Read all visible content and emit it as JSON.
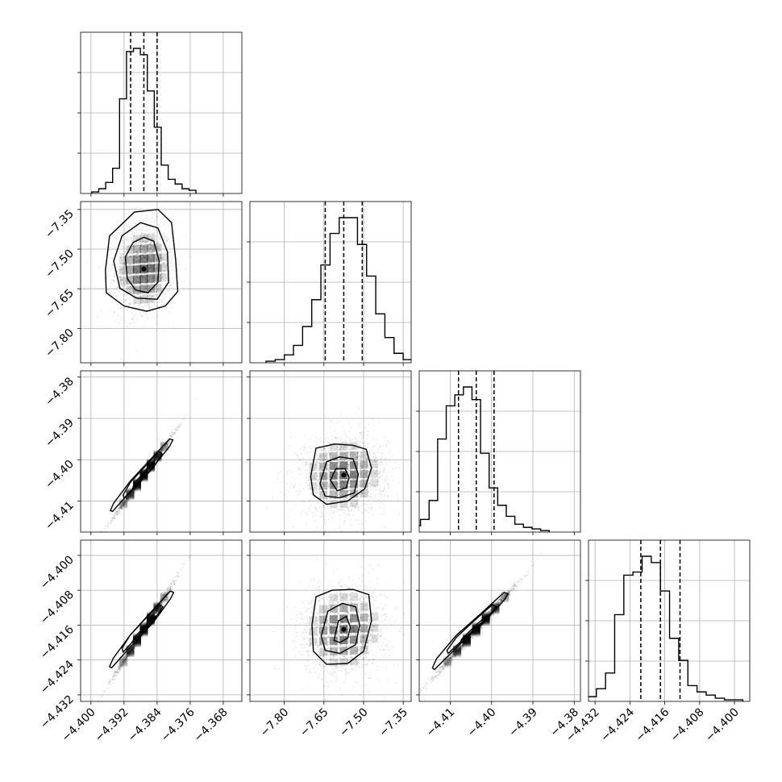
{
  "chart_data": {
    "type": "corner",
    "grid": true,
    "parameters": [
      {
        "lim": [
          -4.4025,
          -4.3635
        ],
        "ticks": [
          "−4.400",
          "−4.392",
          "−4.384",
          "−4.376",
          "−4.368"
        ],
        "tick_values": [
          -4.4,
          -4.392,
          -4.384,
          -4.376,
          -4.368
        ],
        "quantiles": [
          -4.3904,
          -4.3872,
          -4.384
        ],
        "mean": -4.3872,
        "sd": 0.003,
        "hist": [
          1,
          3,
          7,
          16,
          60,
          90,
          92,
          88,
          65,
          42,
          18,
          9,
          6,
          3,
          2
        ]
      },
      {
        "lim": [
          -7.93,
          -7.32
        ],
        "ticks": [
          "−7.80",
          "−7.65",
          "−7.50",
          "−7.35"
        ],
        "tick_values": [
          -7.8,
          -7.65,
          -7.5,
          -7.35
        ],
        "quantiles": [
          -7.645,
          -7.575,
          -7.505
        ],
        "mean": -7.575,
        "sd": 0.07,
        "hist": [
          1,
          2,
          5,
          11,
          23,
          40,
          62,
          82,
          92,
          92,
          75,
          55,
          31,
          16,
          6,
          2,
          1
        ]
      },
      {
        "lim": [
          -4.4175,
          -4.3785
        ],
        "ticks": [
          "−4.41",
          "−4.40",
          "−4.39",
          "−4.38"
        ],
        "tick_values": [
          -4.41,
          -4.4,
          -4.39,
          -4.38
        ],
        "quantiles": [
          -4.408,
          -4.4037,
          -4.3994
        ],
        "mean": -4.4037,
        "sd": 0.0042,
        "hist": [
          2,
          4,
          8,
          20,
          59,
          80,
          87,
          92,
          84,
          50,
          28,
          17,
          10,
          5,
          3,
          2,
          1
        ]
      },
      {
        "lim": [
          -4.4335,
          -4.3965
        ],
        "ticks": [
          "−4.432",
          "−4.424",
          "−4.416",
          "−4.408",
          "−4.400"
        ],
        "tick_values": [
          -4.432,
          -4.424,
          -4.416,
          -4.408,
          -4.4
        ],
        "quantiles": [
          -4.4215,
          -4.417,
          -4.4125
        ],
        "mean": -4.417,
        "sd": 0.0045,
        "hist": [
          2,
          3,
          8,
          18,
          55,
          80,
          82,
          92,
          88,
          70,
          40,
          26,
          10,
          6,
          4,
          2,
          1,
          1
        ]
      }
    ],
    "pairs": [
      {
        "row": 1,
        "col": 0,
        "corr": 0.05,
        "contours": [
          [
            [
              -4.3917,
              -7.53
            ],
            [
              -4.3898,
              -7.475
            ],
            [
              -4.3872,
              -7.455
            ],
            [
              -4.3848,
              -7.47
            ],
            [
              -4.3835,
              -7.545
            ],
            [
              -4.3838,
              -7.625
            ],
            [
              -4.3862,
              -7.665
            ],
            [
              -4.3892,
              -7.655
            ],
            [
              -4.3912,
              -7.612
            ]
          ],
          [
            [
              -4.3945,
              -7.545
            ],
            [
              -4.3925,
              -7.45
            ],
            [
              -4.388,
              -7.4
            ],
            [
              -4.3838,
              -7.42
            ],
            [
              -4.3815,
              -7.51
            ],
            [
              -4.3812,
              -7.625
            ],
            [
              -4.384,
              -7.69
            ],
            [
              -4.389,
              -7.685
            ],
            [
              -4.393,
              -7.648
            ]
          ],
          [
            [
              -4.3965,
              -7.58
            ],
            [
              -4.3955,
              -7.45
            ],
            [
              -4.3895,
              -7.36
            ],
            [
              -4.3838,
              -7.35
            ],
            [
              -4.3805,
              -7.4
            ],
            [
              -4.3795,
              -7.54
            ],
            [
              -4.379,
              -7.66
            ],
            [
              -4.382,
              -7.715
            ],
            [
              -4.3865,
              -7.735
            ],
            [
              -4.392,
              -7.715
            ],
            [
              -4.3963,
              -7.665
            ]
          ]
        ]
      },
      {
        "row": 2,
        "col": 0,
        "corr": 0.995,
        "contours": [
          [
            [
              -4.39,
              -4.4072
            ],
            [
              -4.3878,
              -4.405
            ],
            [
              -4.3848,
              -4.4018
            ],
            [
              -4.3846,
              -4.4004
            ],
            [
              -4.3866,
              -4.4024
            ],
            [
              -4.3894,
              -4.4056
            ]
          ],
          [
            [
              -4.392,
              -4.4093
            ],
            [
              -4.3885,
              -4.4057
            ],
            [
              -4.3845,
              -4.4013
            ],
            [
              -4.3828,
              -4.3985
            ],
            [
              -4.3836,
              -4.398
            ],
            [
              -4.387,
              -4.4017
            ],
            [
              -4.3905,
              -4.4055
            ],
            [
              -4.3922,
              -4.4085
            ]
          ],
          [
            [
              -4.3948,
              -4.4125
            ],
            [
              -4.39,
              -4.4072
            ],
            [
              -4.385,
              -4.4018
            ],
            [
              -4.381,
              -4.3968
            ],
            [
              -4.3802,
              -4.3952
            ],
            [
              -4.381,
              -4.395
            ],
            [
              -4.3855,
              -4.3998
            ],
            [
              -4.3905,
              -4.4052
            ],
            [
              -4.3945,
              -4.4105
            ],
            [
              -4.3953,
              -4.4123
            ]
          ]
        ]
      },
      {
        "row": 2,
        "col": 1,
        "corr": 0.05,
        "contours": [
          [
            [
              -7.625,
              -4.405
            ],
            [
              -7.605,
              -4.4022
            ],
            [
              -7.57,
              -4.4022
            ],
            [
              -7.555,
              -4.4042
            ],
            [
              -7.565,
              -4.4068
            ],
            [
              -7.6,
              -4.4075
            ]
          ],
          [
            [
              -7.665,
              -4.4058
            ],
            [
              -7.64,
              -4.4005
            ],
            [
              -7.59,
              -4.3993
            ],
            [
              -7.54,
              -4.3998
            ],
            [
              -7.52,
              -4.4035
            ],
            [
              -7.535,
              -4.408
            ],
            [
              -7.59,
              -4.4092
            ],
            [
              -7.645,
              -4.4088
            ]
          ],
          [
            [
              -7.7,
              -4.404
            ],
            [
              -7.68,
              -4.3972
            ],
            [
              -7.61,
              -4.3962
            ],
            [
              -7.54,
              -4.3965
            ],
            [
              -7.49,
              -4.3975
            ],
            [
              -7.47,
              -4.402
            ],
            [
              -7.495,
              -4.407
            ],
            [
              -7.56,
              -4.41
            ],
            [
              -7.64,
              -4.4108
            ],
            [
              -7.69,
              -4.4085
            ]
          ]
        ]
      },
      {
        "row": 3,
        "col": 0,
        "corr": 0.995,
        "contours": [
          [
            [
              -4.39,
              -4.42
            ],
            [
              -4.3878,
              -4.4178
            ],
            [
              -4.3848,
              -4.415
            ],
            [
              -4.3842,
              -4.4138
            ],
            [
              -4.3865,
              -4.4158
            ],
            [
              -4.3895,
              -4.4188
            ]
          ],
          [
            [
              -4.3922,
              -4.4222
            ],
            [
              -4.3885,
              -4.4183
            ],
            [
              -4.3845,
              -4.4145
            ],
            [
              -4.3826,
              -4.4118
            ],
            [
              -4.3835,
              -4.4113
            ],
            [
              -4.387,
              -4.4147
            ],
            [
              -4.3905,
              -4.4183
            ],
            [
              -4.3925,
              -4.4213
            ]
          ],
          [
            [
              -4.395,
              -4.4258
            ],
            [
              -4.39,
              -4.4205
            ],
            [
              -4.385,
              -4.4155
            ],
            [
              -4.3808,
              -4.41
            ],
            [
              -4.38,
              -4.4085
            ],
            [
              -4.3808,
              -4.4082
            ],
            [
              -4.3855,
              -4.413
            ],
            [
              -4.3905,
              -4.4183
            ],
            [
              -4.3946,
              -4.4236
            ],
            [
              -4.3955,
              -4.4255
            ]
          ]
        ]
      },
      {
        "row": 3,
        "col": 1,
        "corr": 0.05,
        "contours": [
          [
            [
              -7.612,
              -4.4195
            ],
            [
              -7.595,
              -4.415
            ],
            [
              -7.565,
              -4.414
            ],
            [
              -7.55,
              -4.4165
            ],
            [
              -7.56,
              -4.419
            ],
            [
              -7.59,
              -4.42
            ]
          ],
          [
            [
              -7.66,
              -4.4185
            ],
            [
              -7.635,
              -4.4128
            ],
            [
              -7.58,
              -4.411
            ],
            [
              -7.53,
              -4.4118
            ],
            [
              -7.515,
              -4.416
            ],
            [
              -7.53,
              -4.4205
            ],
            [
              -7.59,
              -4.4225
            ],
            [
              -7.645,
              -4.4218
            ]
          ],
          [
            [
              -7.695,
              -4.416
            ],
            [
              -7.68,
              -4.4095
            ],
            [
              -7.62,
              -4.408
            ],
            [
              -7.54,
              -4.4078
            ],
            [
              -7.48,
              -4.409
            ],
            [
              -7.47,
              -4.415
            ],
            [
              -7.5,
              -4.422
            ],
            [
              -7.56,
              -4.4248
            ],
            [
              -7.64,
              -4.425
            ],
            [
              -7.69,
              -4.422
            ]
          ]
        ]
      },
      {
        "row": 3,
        "col": 2,
        "corr": 0.995,
        "contours": [
          [
            [
              -4.4078,
              -4.4205
            ],
            [
              -4.4052,
              -4.418
            ],
            [
              -4.4015,
              -4.4148
            ],
            [
              -4.401,
              -4.4137
            ],
            [
              -4.4038,
              -4.416
            ],
            [
              -4.4072,
              -4.4192
            ]
          ],
          [
            [
              -4.4105,
              -4.4225
            ],
            [
              -4.406,
              -4.4185
            ],
            [
              -4.401,
              -4.4142
            ],
            [
              -4.3988,
              -4.4118
            ],
            [
              -4.3998,
              -4.4113
            ],
            [
              -4.4042,
              -4.415
            ],
            [
              -4.4085,
              -4.4188
            ],
            [
              -4.4108,
              -4.4218
            ]
          ],
          [
            [
              -4.4138,
              -4.4262
            ],
            [
              -4.408,
              -4.4207
            ],
            [
              -4.402,
              -4.4155
            ],
            [
              -4.397,
              -4.4103
            ],
            [
              -4.396,
              -4.4088
            ],
            [
              -4.397,
              -4.4085
            ],
            [
              -4.4025,
              -4.4133
            ],
            [
              -4.4085,
              -4.4183
            ],
            [
              -4.4133,
              -4.4237
            ],
            [
              -4.4143,
              -4.4258
            ]
          ]
        ]
      }
    ]
  }
}
